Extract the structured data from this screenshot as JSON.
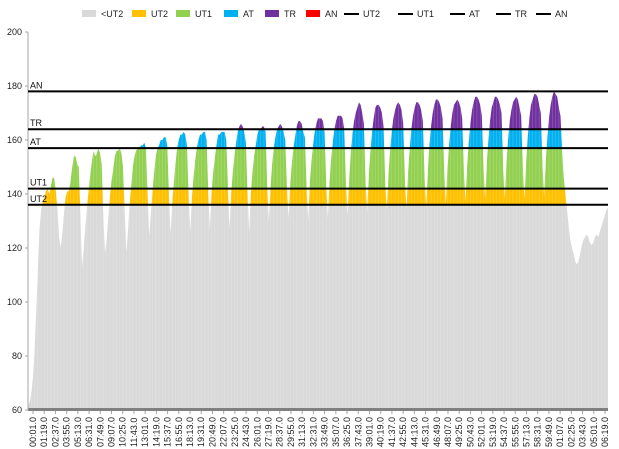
{
  "chart_data": {
    "type": "area",
    "title": "",
    "xlabel": "",
    "ylabel": "",
    "ylim": [
      60,
      200
    ],
    "yticks": [
      60,
      80,
      100,
      120,
      140,
      160,
      180,
      200
    ],
    "grid": false,
    "legend_position": "top",
    "x_tick_labels": [
      "00:01.0",
      "01:19.0",
      "02:37.0",
      "03:55.0",
      "05:13.0",
      "06:31.0",
      "07:49.0",
      "09:07.0",
      "10:25.0",
      "11:43.0",
      "13:01.0",
      "14:19.0",
      "15:37.0",
      "16:55.0",
      "18:13.0",
      "19:31.0",
      "20:49.0",
      "22:07.0",
      "23:25.0",
      "24:43.0",
      "26:01.0",
      "27:19.0",
      "28:37.0",
      "29:55.0",
      "31:13.0",
      "32:31.0",
      "33:49.0",
      "35:07.0",
      "36:25.0",
      "37:43.0",
      "39:01.0",
      "40:19.0",
      "41:37.0",
      "42:55.0",
      "44:13.0",
      "45:31.0",
      "46:49.0",
      "48:07.0",
      "49:25.0",
      "50:43.0",
      "52:01.0",
      "53:19.0",
      "54:37.0",
      "55:55.0",
      "57:13.0",
      "58:31.0",
      "59:49.0",
      "01:07.0",
      "02:25.0",
      "03:43.0",
      "05:01.0",
      "06:19.0"
    ],
    "legend": [
      {
        "name": "<UT2",
        "kind": "fill",
        "color": "#d9d9d9"
      },
      {
        "name": "UT2",
        "kind": "fill",
        "color": "#ffc000"
      },
      {
        "name": "UT1",
        "kind": "fill",
        "color": "#92d050"
      },
      {
        "name": "AT",
        "kind": "fill",
        "color": "#00b0f0"
      },
      {
        "name": "TR",
        "kind": "fill",
        "color": "#7030a0"
      },
      {
        "name": "AN",
        "kind": "fill",
        "color": "#ff0000"
      },
      {
        "name": "UT2",
        "kind": "line",
        "color": "#000000"
      },
      {
        "name": "UT1",
        "kind": "line",
        "color": "#000000"
      },
      {
        "name": "AT",
        "kind": "line",
        "color": "#000000"
      },
      {
        "name": "TR",
        "kind": "line",
        "color": "#000000"
      },
      {
        "name": "AN",
        "kind": "line",
        "color": "#000000"
      }
    ],
    "thresholds": [
      {
        "name": "UT2",
        "value": 136
      },
      {
        "name": "UT1",
        "value": 142
      },
      {
        "name": "AT",
        "value": 157
      },
      {
        "name": "TR",
        "value": 164
      },
      {
        "name": "AN",
        "value": 178
      }
    ],
    "zones": [
      {
        "name": "<UT2",
        "upper": 136,
        "color": "#d9d9d9"
      },
      {
        "name": "UT2",
        "upper": 142,
        "color": "#ffc000"
      },
      {
        "name": "UT1",
        "upper": 157,
        "color": "#92d050"
      },
      {
        "name": "AT",
        "upper": 164,
        "color": "#00b0f0"
      },
      {
        "name": "TR",
        "upper": 178,
        "color": "#7030a0"
      },
      {
        "name": "AN",
        "upper": 200,
        "color": "#ff0000"
      }
    ],
    "series": [
      {
        "values": [
          61,
          63,
          66,
          72,
          82,
          96,
          112,
          127,
          134,
          137,
          139,
          141,
          142,
          140,
          143,
          146,
          146,
          141,
          134,
          124,
          120,
          126,
          133,
          139,
          141,
          141,
          145,
          150,
          154,
          154,
          151,
          150,
          132,
          113,
          120,
          128,
          135,
          141,
          147,
          152,
          156,
          154,
          155,
          157,
          155,
          151,
          131,
          118,
          123,
          131,
          139,
          145,
          149,
          154,
          156,
          156,
          157,
          155,
          150,
          134,
          118,
          126,
          136,
          143,
          150,
          154,
          156,
          157,
          157,
          158,
          158,
          159,
          157,
          140,
          124,
          133,
          141,
          148,
          154,
          157,
          158,
          160,
          160,
          161,
          161,
          158,
          140,
          125,
          136,
          144,
          151,
          157,
          160,
          162,
          162,
          163,
          162,
          158,
          140,
          126,
          138,
          146,
          152,
          157,
          160,
          162,
          162,
          163,
          163,
          160,
          141,
          127,
          140,
          148,
          153,
          158,
          162,
          162,
          163,
          163,
          163,
          160,
          143,
          127,
          140,
          148,
          154,
          159,
          163,
          165,
          166,
          165,
          163,
          159,
          140,
          126,
          140,
          148,
          154,
          158,
          162,
          164,
          164,
          165,
          165,
          163,
          143,
          130,
          142,
          151,
          157,
          161,
          164,
          165,
          166,
          165,
          163,
          160,
          143,
          131,
          143,
          151,
          157,
          161,
          165,
          167,
          167,
          166,
          163,
          161,
          143,
          130,
          144,
          152,
          158,
          163,
          166,
          168,
          168,
          168,
          167,
          163,
          144,
          131,
          144,
          153,
          159,
          164,
          167,
          169,
          169,
          169,
          168,
          164,
          145,
          132,
          145,
          155,
          162,
          167,
          170,
          172,
          174,
          173,
          170,
          166,
          145,
          133,
          147,
          156,
          163,
          168,
          172,
          173,
          173,
          172,
          170,
          165,
          145,
          134,
          147,
          156,
          163,
          168,
          171,
          173,
          174,
          173,
          171,
          166,
          146,
          134,
          148,
          157,
          164,
          169,
          172,
          174,
          174,
          173,
          171,
          167,
          147,
          135,
          148,
          158,
          165,
          170,
          173,
          175,
          175,
          174,
          172,
          168,
          149,
          136,
          149,
          158,
          165,
          170,
          173,
          174,
          175,
          174,
          172,
          168,
          149,
          137,
          150,
          159,
          166,
          171,
          174,
          176,
          176,
          175,
          173,
          169,
          150,
          138,
          151,
          160,
          167,
          172,
          174,
          176,
          176,
          175,
          173,
          170,
          150,
          138,
          151,
          160,
          167,
          171,
          174,
          175,
          176,
          175,
          172,
          169,
          150,
          138,
          151,
          161,
          168,
          173,
          175,
          177,
          177,
          176,
          173,
          170,
          151,
          139,
          152,
          161,
          168,
          173,
          176,
          178,
          177,
          176,
          172,
          169,
          156,
          146,
          140,
          134,
          128,
          123,
          120,
          118,
          115,
          114,
          115,
          118,
          121,
          123,
          124,
          125,
          124,
          122,
          121,
          122,
          124,
          125,
          124,
          126,
          128,
          130,
          132,
          134,
          135
        ]
      }
    ]
  }
}
